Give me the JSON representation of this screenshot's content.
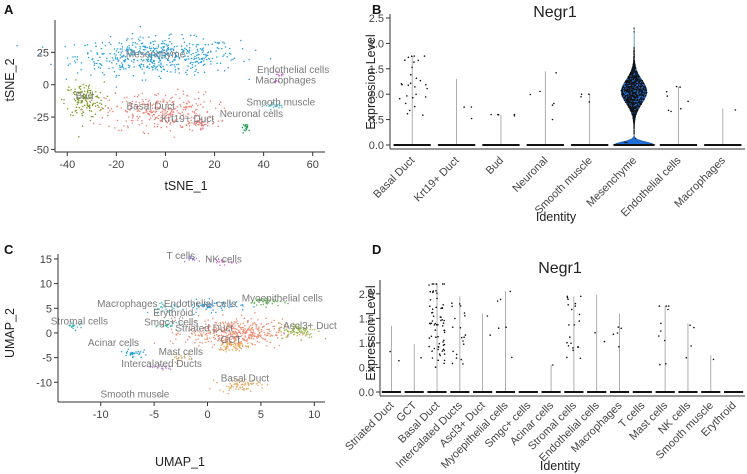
{
  "chart_data": [
    {
      "id": "A",
      "type": "scatter",
      "panel_label": "A",
      "xlabel": "tSNE_1",
      "ylabel": "tSNE_2",
      "xlim": [
        -45,
        65
      ],
      "ylim": [
        -52,
        50
      ],
      "xticks": [
        -40,
        -20,
        0,
        20,
        40,
        60
      ],
      "yticks": [
        -50,
        -25,
        0,
        25
      ],
      "clusters": [
        {
          "name": "Mesenchyme",
          "color": "#1f9ee0",
          "cx": -3,
          "cy": 22,
          "rx": 33,
          "ry": 14,
          "n": 520,
          "label_x": -4,
          "label_y": 21
        },
        {
          "name": "Bud",
          "color": "#7c9a22",
          "cx": -33,
          "cy": -12,
          "rx": 8,
          "ry": 14,
          "n": 140,
          "label_x": -33,
          "label_y": -11
        },
        {
          "name": "Basal Duct",
          "color": "#f08074",
          "cx": -2,
          "cy": -21,
          "rx": 22,
          "ry": 15,
          "n": 300,
          "label_x": -6,
          "label_y": -19
        },
        {
          "name": "Krt19+ Duct",
          "color": "#e07878",
          "cx": 14,
          "cy": -30,
          "rx": 7,
          "ry": 4,
          "n": 40,
          "label_x": 9,
          "label_y": -29
        },
        {
          "name": "Endothelial cells",
          "color": "#d16cd6",
          "cx": 47,
          "cy": 8,
          "rx": 2,
          "ry": 2,
          "n": 12,
          "label_x": 52,
          "label_y": 9
        },
        {
          "name": "Macrophages",
          "color": "#c869d2",
          "cx": 45,
          "cy": 2,
          "rx": 1.5,
          "ry": 1.5,
          "n": 6,
          "label_x": 49,
          "label_y": 1
        },
        {
          "name": "Smooth muscle",
          "color": "#3fb8c4",
          "cx": 44,
          "cy": -16,
          "rx": 4,
          "ry": 2.5,
          "n": 24,
          "label_x": 47,
          "label_y": -16
        },
        {
          "name": "Neuronal cells",
          "color": "#19a04a",
          "cx": 33,
          "cy": -33,
          "rx": 2,
          "ry": 3,
          "n": 18,
          "label_x": 35,
          "label_y": -25
        }
      ]
    },
    {
      "id": "B",
      "type": "violin",
      "panel_label": "B",
      "title": "Negr1",
      "xlabel": "Identity",
      "ylabel": "Expression Level",
      "ylim": [
        0,
        2.5
      ],
      "yticks": [
        0.0,
        0.5,
        1.0,
        1.5,
        2.0,
        2.5
      ],
      "categories": [
        "Basal Duct",
        "Krt19+ Duct",
        "Bud",
        "Neuronal",
        "Smooth muscle",
        "Mesenchyme",
        "Endothelial cells",
        "Macrophages"
      ],
      "max_values": [
        1.75,
        1.3,
        0.6,
        1.45,
        1.0,
        2.3,
        1.15,
        0.72
      ],
      "positive_points": [
        28,
        3,
        5,
        6,
        4,
        900,
        8,
        1
      ],
      "wide_violin_index": 5,
      "wide_violin_color": "#1f6fd6"
    },
    {
      "id": "C",
      "type": "scatter",
      "panel_label": "C",
      "xlabel": "UMAP_1",
      "ylabel": "UMAP_2",
      "xlim": [
        -14,
        11
      ],
      "ylim": [
        -14,
        16
      ],
      "xticks": [
        -10,
        -5,
        0,
        5,
        10
      ],
      "yticks": [
        -10,
        -5,
        0,
        5,
        10,
        15
      ],
      "clusters": [
        {
          "name": "T cells",
          "color": "#9a7de0",
          "cx": -1.3,
          "cy": 15,
          "rx": 0.6,
          "ry": 0.6,
          "n": 14,
          "label_x": -2.5,
          "label_y": 15
        },
        {
          "name": "NK cells",
          "color": "#d16cd6",
          "cx": 1.3,
          "cy": 14.5,
          "rx": 1.1,
          "ry": 0.7,
          "n": 22,
          "label_x": 1.5,
          "label_y": 14.3
        },
        {
          "name": "Macrophages",
          "color": "#3fb8c4",
          "cx": -4,
          "cy": 5,
          "rx": 1.5,
          "ry": 1,
          "n": 30,
          "label_x": -7.5,
          "label_y": 5.3
        },
        {
          "name": "Endothelial cells",
          "color": "#2e9de6",
          "cx": 0.5,
          "cy": 5.5,
          "rx": 2.8,
          "ry": 1.2,
          "n": 70,
          "label_x": -0.7,
          "label_y": 5.3
        },
        {
          "name": "Myoepithelial cells",
          "color": "#58b84a",
          "cx": 5.5,
          "cy": 6.3,
          "rx": 1.5,
          "ry": 0.9,
          "n": 40,
          "label_x": 7,
          "label_y": 6.4
        },
        {
          "name": "Erythroid",
          "color": "#999999",
          "cx": -3,
          "cy": 3.2,
          "rx": 0.8,
          "ry": 0.5,
          "n": 6,
          "label_x": -3.2,
          "label_y": 3.4
        },
        {
          "name": "Stromal cells",
          "color": "#2fb3b8",
          "cx": -12.5,
          "cy": 1.5,
          "rx": 0.8,
          "ry": 0.8,
          "n": 16,
          "label_x": -12,
          "label_y": 1.7
        },
        {
          "name": "Smgc+ cells",
          "color": "#3fbfa6",
          "cx": -3.5,
          "cy": 1.5,
          "rx": 1.0,
          "ry": 0.7,
          "n": 24,
          "label_x": -3.4,
          "label_y": 1.5
        },
        {
          "name": "Striated Duct",
          "color": "#f08a6e",
          "cx": 2.5,
          "cy": 0,
          "rx": 4.5,
          "ry": 2.8,
          "n": 420,
          "label_x": -0.3,
          "label_y": 0.3
        },
        {
          "name": "Ascl3+ Duct",
          "color": "#9cb84a",
          "cx": 8.5,
          "cy": 0.5,
          "rx": 1.8,
          "ry": 1.5,
          "n": 90,
          "label_x": 9.6,
          "label_y": 0.8
        },
        {
          "name": "GCT",
          "color": "#e6a84a",
          "cx": 2.5,
          "cy": -2.5,
          "rx": 1.5,
          "ry": 1.2,
          "n": 60,
          "label_x": 2.2,
          "label_y": -2
        },
        {
          "name": "Acinar cells",
          "color": "#22a0d0",
          "cx": -7,
          "cy": -4,
          "rx": 0.9,
          "ry": 1.1,
          "n": 30,
          "label_x": -8.8,
          "label_y": -2.6
        },
        {
          "name": "Mast cells",
          "color": "#cc9966",
          "cx": -2.5,
          "cy": -5,
          "rx": 1.3,
          "ry": 0.9,
          "n": 24,
          "label_x": -2.5,
          "label_y": -4.5
        },
        {
          "name": "Intercalated Ducts",
          "color": "#b57fd6",
          "cx": -4.5,
          "cy": -7,
          "rx": 1.3,
          "ry": 0.7,
          "n": 20,
          "label_x": -4.3,
          "label_y": -6.9
        },
        {
          "name": "Basal Duct",
          "color": "#e8a65a",
          "cx": 3,
          "cy": -10.5,
          "rx": 2,
          "ry": 1.2,
          "n": 70,
          "label_x": 3.5,
          "label_y": -9.8
        },
        {
          "name": "Smooth muscle",
          "color": "#aaaaaa",
          "cx": -4.5,
          "cy": -12.7,
          "rx": 0.4,
          "ry": 0.3,
          "n": 4,
          "label_x": -6.8,
          "label_y": -13.1
        }
      ]
    },
    {
      "id": "D",
      "type": "violin",
      "panel_label": "D",
      "title": "Negr1",
      "xlabel": "Identity",
      "ylabel": "Expression Level",
      "ylim": [
        0,
        2.2
      ],
      "yticks": [
        0.0,
        0.5,
        1.0,
        1.5,
        2.0
      ],
      "categories": [
        "Striated Duct",
        "GCT",
        "Basal Duct",
        "Intercalated Ducts",
        "Ascl3+ Duct",
        "Myoepithelial cells",
        "Smgc+ cells",
        "Acinar cells",
        "Stromal cells",
        "Endothelial cells",
        "Macrophages",
        "T cells",
        "Mast cells",
        "NK cells",
        "Smooth muscle",
        "Erythroid"
      ],
      "max_values": [
        1.35,
        0.98,
        2.2,
        1.95,
        1.6,
        2.05,
        0,
        0.55,
        1.95,
        1.98,
        1.6,
        0,
        1.75,
        1.4,
        0.75,
        0
      ],
      "positive_points": [
        2,
        1,
        70,
        20,
        2,
        6,
        0,
        1,
        22,
        2,
        5,
        0,
        10,
        4,
        1,
        0
      ]
    }
  ]
}
